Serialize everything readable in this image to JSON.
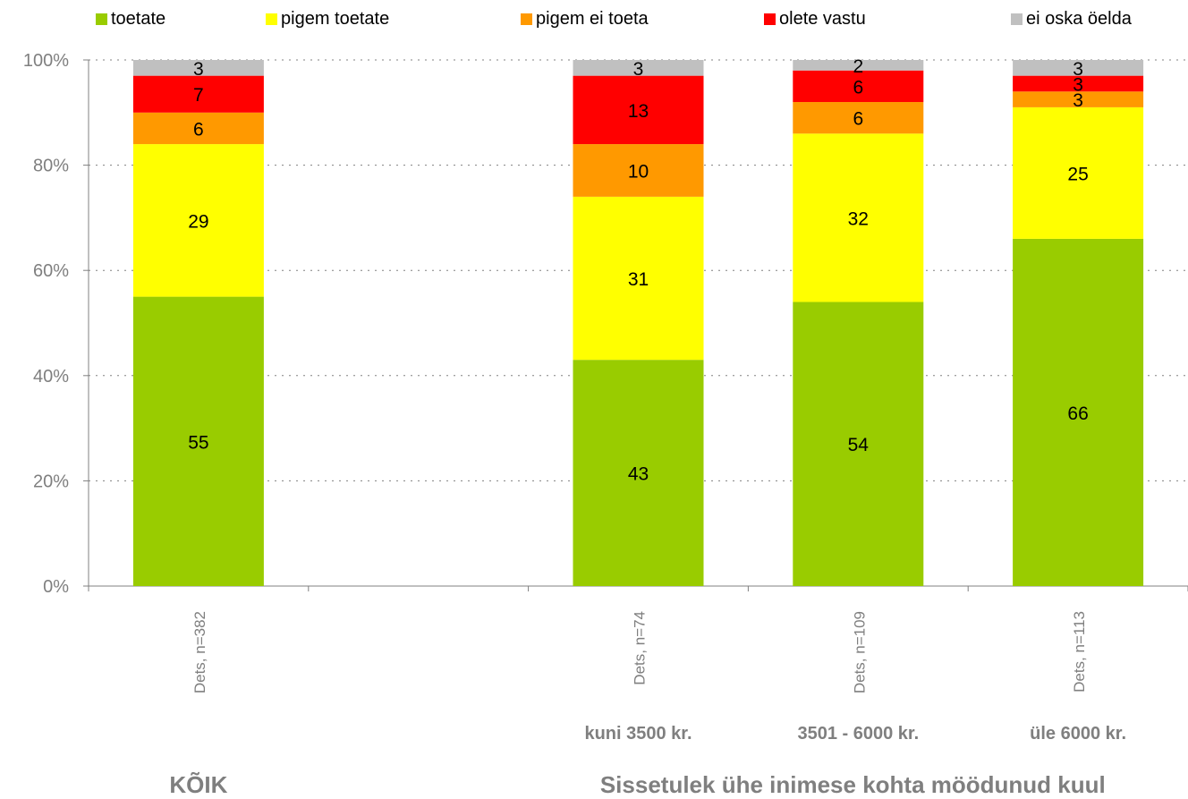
{
  "chart_data": {
    "type": "bar",
    "stacked": true,
    "percent_stacked": true,
    "ylim": [
      0,
      100
    ],
    "yticks": [
      "0%",
      "20%",
      "40%",
      "60%",
      "80%",
      "100%"
    ],
    "grid": true,
    "legend_position": "top",
    "categories": [
      "Dets, n=382",
      "",
      "Dets, n=74",
      "Dets, n=109",
      "Dets, n=113"
    ],
    "series": [
      {
        "name": "toetate",
        "color": "#99cc00",
        "values": [
          55,
          null,
          43,
          54,
          66
        ]
      },
      {
        "name": "pigem toetate",
        "color": "#ffff00",
        "values": [
          29,
          null,
          31,
          32,
          25
        ]
      },
      {
        "name": "pigem ei toeta",
        "color": "#ff9900",
        "values": [
          6,
          null,
          10,
          6,
          3
        ]
      },
      {
        "name": "olete vastu",
        "color": "#ff0000",
        "values": [
          7,
          null,
          13,
          6,
          3
        ]
      },
      {
        "name": "ei oska öelda",
        "color": "#c0c0c0",
        "values": [
          3,
          null,
          3,
          2,
          3
        ]
      }
    ],
    "group_labels": [
      "",
      "",
      "kuni 3500 kr.",
      "3501 - 6000 kr.",
      "üle 6000 kr."
    ],
    "section_labels": [
      "KÕIK",
      "Sissetulek ühe inimese kohta möödunud kuul"
    ]
  }
}
